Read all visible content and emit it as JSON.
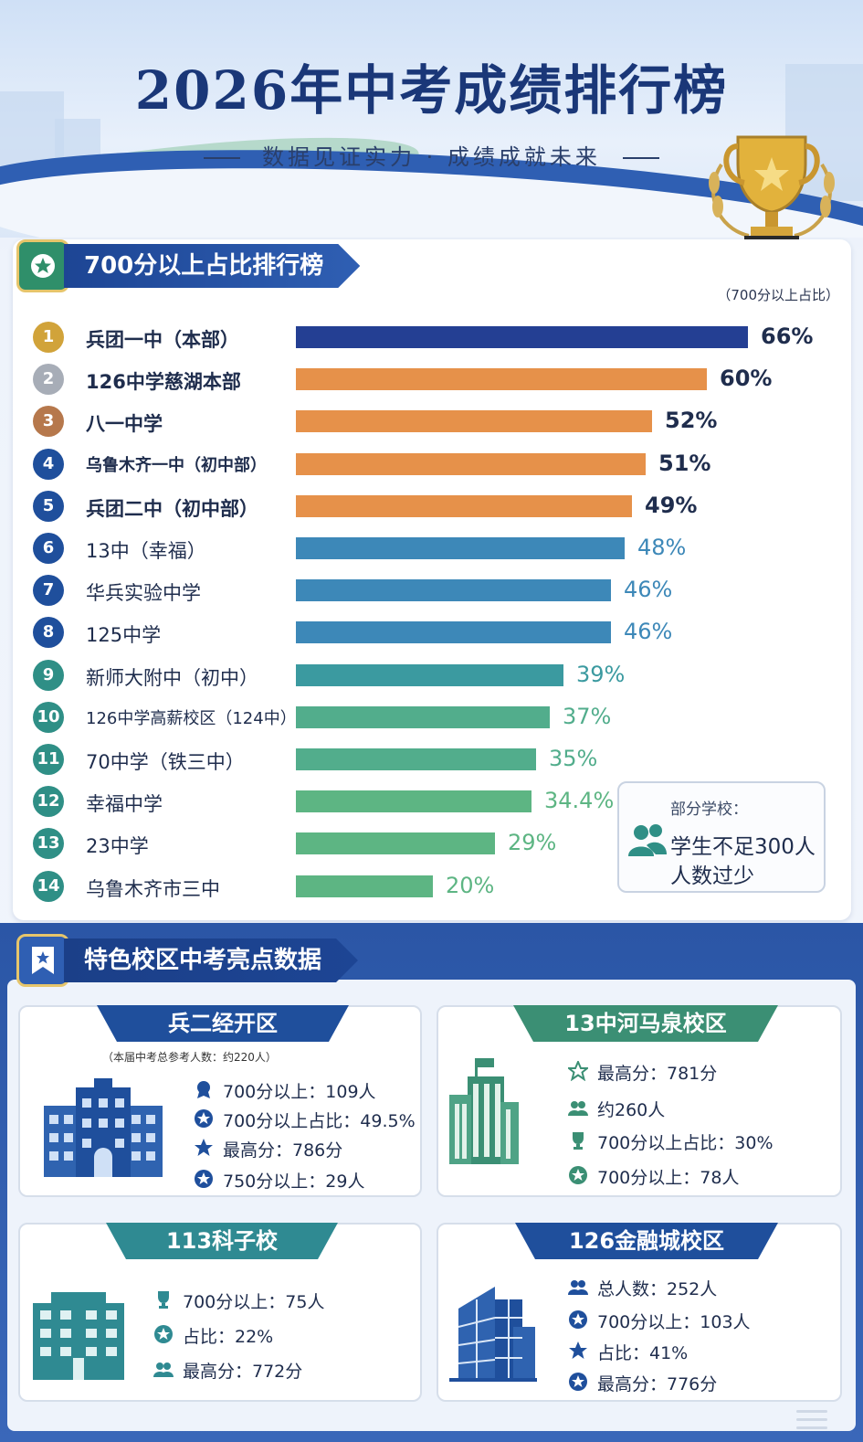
{
  "header": {
    "title": "2026年中考成绩排行榜",
    "subtitle": "数据见证实力 · 成绩成就未来"
  },
  "ranking": {
    "heading": "700分以上占比排行榜",
    "unit_note": "（700分以上占比）",
    "note_box": {
      "heading": "部分学校：",
      "line1": "学生不足300人",
      "line2": "人数过少"
    }
  },
  "chart_data": {
    "type": "bar",
    "orientation": "horizontal",
    "title": "700分以上占比排行榜",
    "ylabel": "700分以上占比",
    "xlim": [
      0,
      66
    ],
    "grid": false,
    "items": [
      {
        "rank": "1",
        "name": "兵团一中（本部）",
        "value": 66,
        "label": "66%",
        "color": "#243f93"
      },
      {
        "rank": "2",
        "name": "126中学慈湖本部",
        "value": 60,
        "label": "60%",
        "color": "#e6914a"
      },
      {
        "rank": "3",
        "name": "八一中学",
        "value": 52,
        "label": "52%",
        "color": "#e6914a"
      },
      {
        "rank": "4",
        "name": "乌鲁木齐一中（初中部）",
        "value": 51,
        "label": "51%",
        "color": "#e6914a"
      },
      {
        "rank": "5",
        "name": "兵团二中（初中部）",
        "value": 49,
        "label": "49%",
        "color": "#e6914a"
      },
      {
        "rank": "6",
        "name": "13中（幸福）",
        "value": 48,
        "label": "48%",
        "color": "#3d88b8"
      },
      {
        "rank": "7",
        "name": "华兵实验中学",
        "value": 46,
        "label": "46%",
        "color": "#3d88b8"
      },
      {
        "rank": "8",
        "name": "125中学",
        "value": 46,
        "label": "46%",
        "color": "#3d88b8"
      },
      {
        "rank": "9",
        "name": "新师大附中（初中）",
        "value": 39,
        "label": "39%",
        "color": "#3b9aa0"
      },
      {
        "rank": "10",
        "name": "126中学高薪校区（124中）",
        "value": 37,
        "label": "37%",
        "color": "#52ad8c"
      },
      {
        "rank": "11",
        "name": "70中学（铁三中）",
        "value": 35,
        "label": "35%",
        "color": "#52ad8c"
      },
      {
        "rank": "12",
        "name": "幸福中学",
        "value": 34.4,
        "label": "34.4%",
        "color": "#5db583"
      },
      {
        "rank": "13",
        "name": "23中学",
        "value": 29,
        "label": "29%",
        "color": "#5db583"
      },
      {
        "rank": "14",
        "name": "乌鲁木齐市三中",
        "value": 20,
        "label": "20%",
        "color": "#5db583"
      }
    ],
    "rank_colors": {
      "1": "#d1a33a",
      "2": "#a7adb7",
      "3": "#b6784c",
      "default_blue": "#1f4f9c",
      "default_teal": "#2f8f86"
    }
  },
  "highlights": {
    "heading": "特色校区中考亮点数据",
    "cards": [
      {
        "title": "兵二经开区",
        "note": "（本届中考总参考人数：约220人）",
        "color": "#1f4f9c",
        "stats": [
          {
            "icon": "medal-icon",
            "text": "700分以上：109人"
          },
          {
            "icon": "star-circle-icon",
            "text": "700分以上占比：49.5%"
          },
          {
            "icon": "star-icon",
            "text": "最高分：786分"
          },
          {
            "icon": "star-badge-icon",
            "text": "750分以上：29人"
          }
        ]
      },
      {
        "title": "13中河马泉校区",
        "color": "#3b8f74",
        "stats": [
          {
            "icon": "star-outline-icon",
            "text": "最高分：781分"
          },
          {
            "icon": "people-icon",
            "text": "约260人"
          },
          {
            "icon": "trophy-icon",
            "text": "700分以上占比：30%"
          },
          {
            "icon": "star-badge-icon",
            "text": "700分以上：78人"
          }
        ]
      },
      {
        "title": "113科子校",
        "color": "#2f8a92",
        "stats": [
          {
            "icon": "trophy-icon",
            "text": "700分以上：75人"
          },
          {
            "icon": "star-badge-icon",
            "text": "占比：22%"
          },
          {
            "icon": "people-icon",
            "text": "最高分：772分"
          }
        ]
      },
      {
        "title": "126金融城校区",
        "color": "#1f4f9c",
        "stats": [
          {
            "icon": "people-icon",
            "text": "总人数：252人"
          },
          {
            "icon": "star-badge-icon",
            "text": "700分以上：103人"
          },
          {
            "icon": "star-icon",
            "text": "占比：41%"
          },
          {
            "icon": "star-badge-icon",
            "text": "最高分：776分"
          }
        ]
      }
    ]
  }
}
